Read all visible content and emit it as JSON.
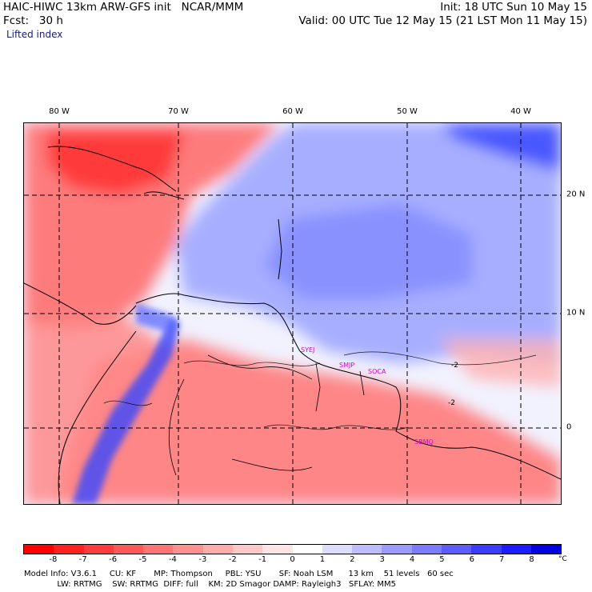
{
  "header": {
    "line1_left": "HAIC-HIWC 13km ARW-GFS init   NCAR/MMM",
    "line2_left": "Fcst:   30 h",
    "line1_right": "Init: 18 UTC Sun 10 May 15",
    "line2_right": "Valid: 00 UTC Tue 12 May 15 (21 LST Mon 11 May 15)",
    "field": "Lifted index"
  },
  "map": {
    "lon_labels": [
      "80 W",
      "70 W",
      "60 W",
      "50 W",
      "40 W"
    ],
    "lat_labels": [
      "20 N",
      "10 N",
      "0"
    ],
    "contour_labels": [
      "-2",
      "-2"
    ],
    "stations": [
      "SYEJ",
      "SMJP",
      "SOCA",
      "SBMQ"
    ],
    "colors": {
      "strong_negative": "#ff2a2a",
      "negative": "#ff8a8a",
      "neutral": "#f4f4ff",
      "positive": "#8a96ff",
      "strong_positive": "#3040ff"
    }
  },
  "colorbar": {
    "labels": [
      "-8",
      "-7",
      "-6",
      "-5",
      "-4",
      "-3",
      "-2",
      "-1",
      "0",
      "1",
      "2",
      "3",
      "4",
      "5",
      "6",
      "7",
      "8"
    ],
    "unit": "°C",
    "colors": [
      "#ff0000",
      "#ff2020",
      "#ff3c3c",
      "#ff5858",
      "#ff7474",
      "#ff9090",
      "#ffacac",
      "#ffc8c8",
      "#ffe4e4",
      "#ffffff",
      "#dcdcff",
      "#bcbcff",
      "#9c9cff",
      "#7c7cff",
      "#5c5cff",
      "#3c3cff",
      "#1c1cff",
      "#0000e0"
    ]
  },
  "footer": {
    "line1": "Model Info: V3.6.1     CU: KF       MP: Thompson     PBL: YSU       SF: Noah LSM      13 km    51 levels   60 sec",
    "line2": "             LW: RRTMG    SW: RRTMG  DIFF: full    KM: 2D Smagor DAMP: Rayleigh3   SFLAY: MM5"
  }
}
